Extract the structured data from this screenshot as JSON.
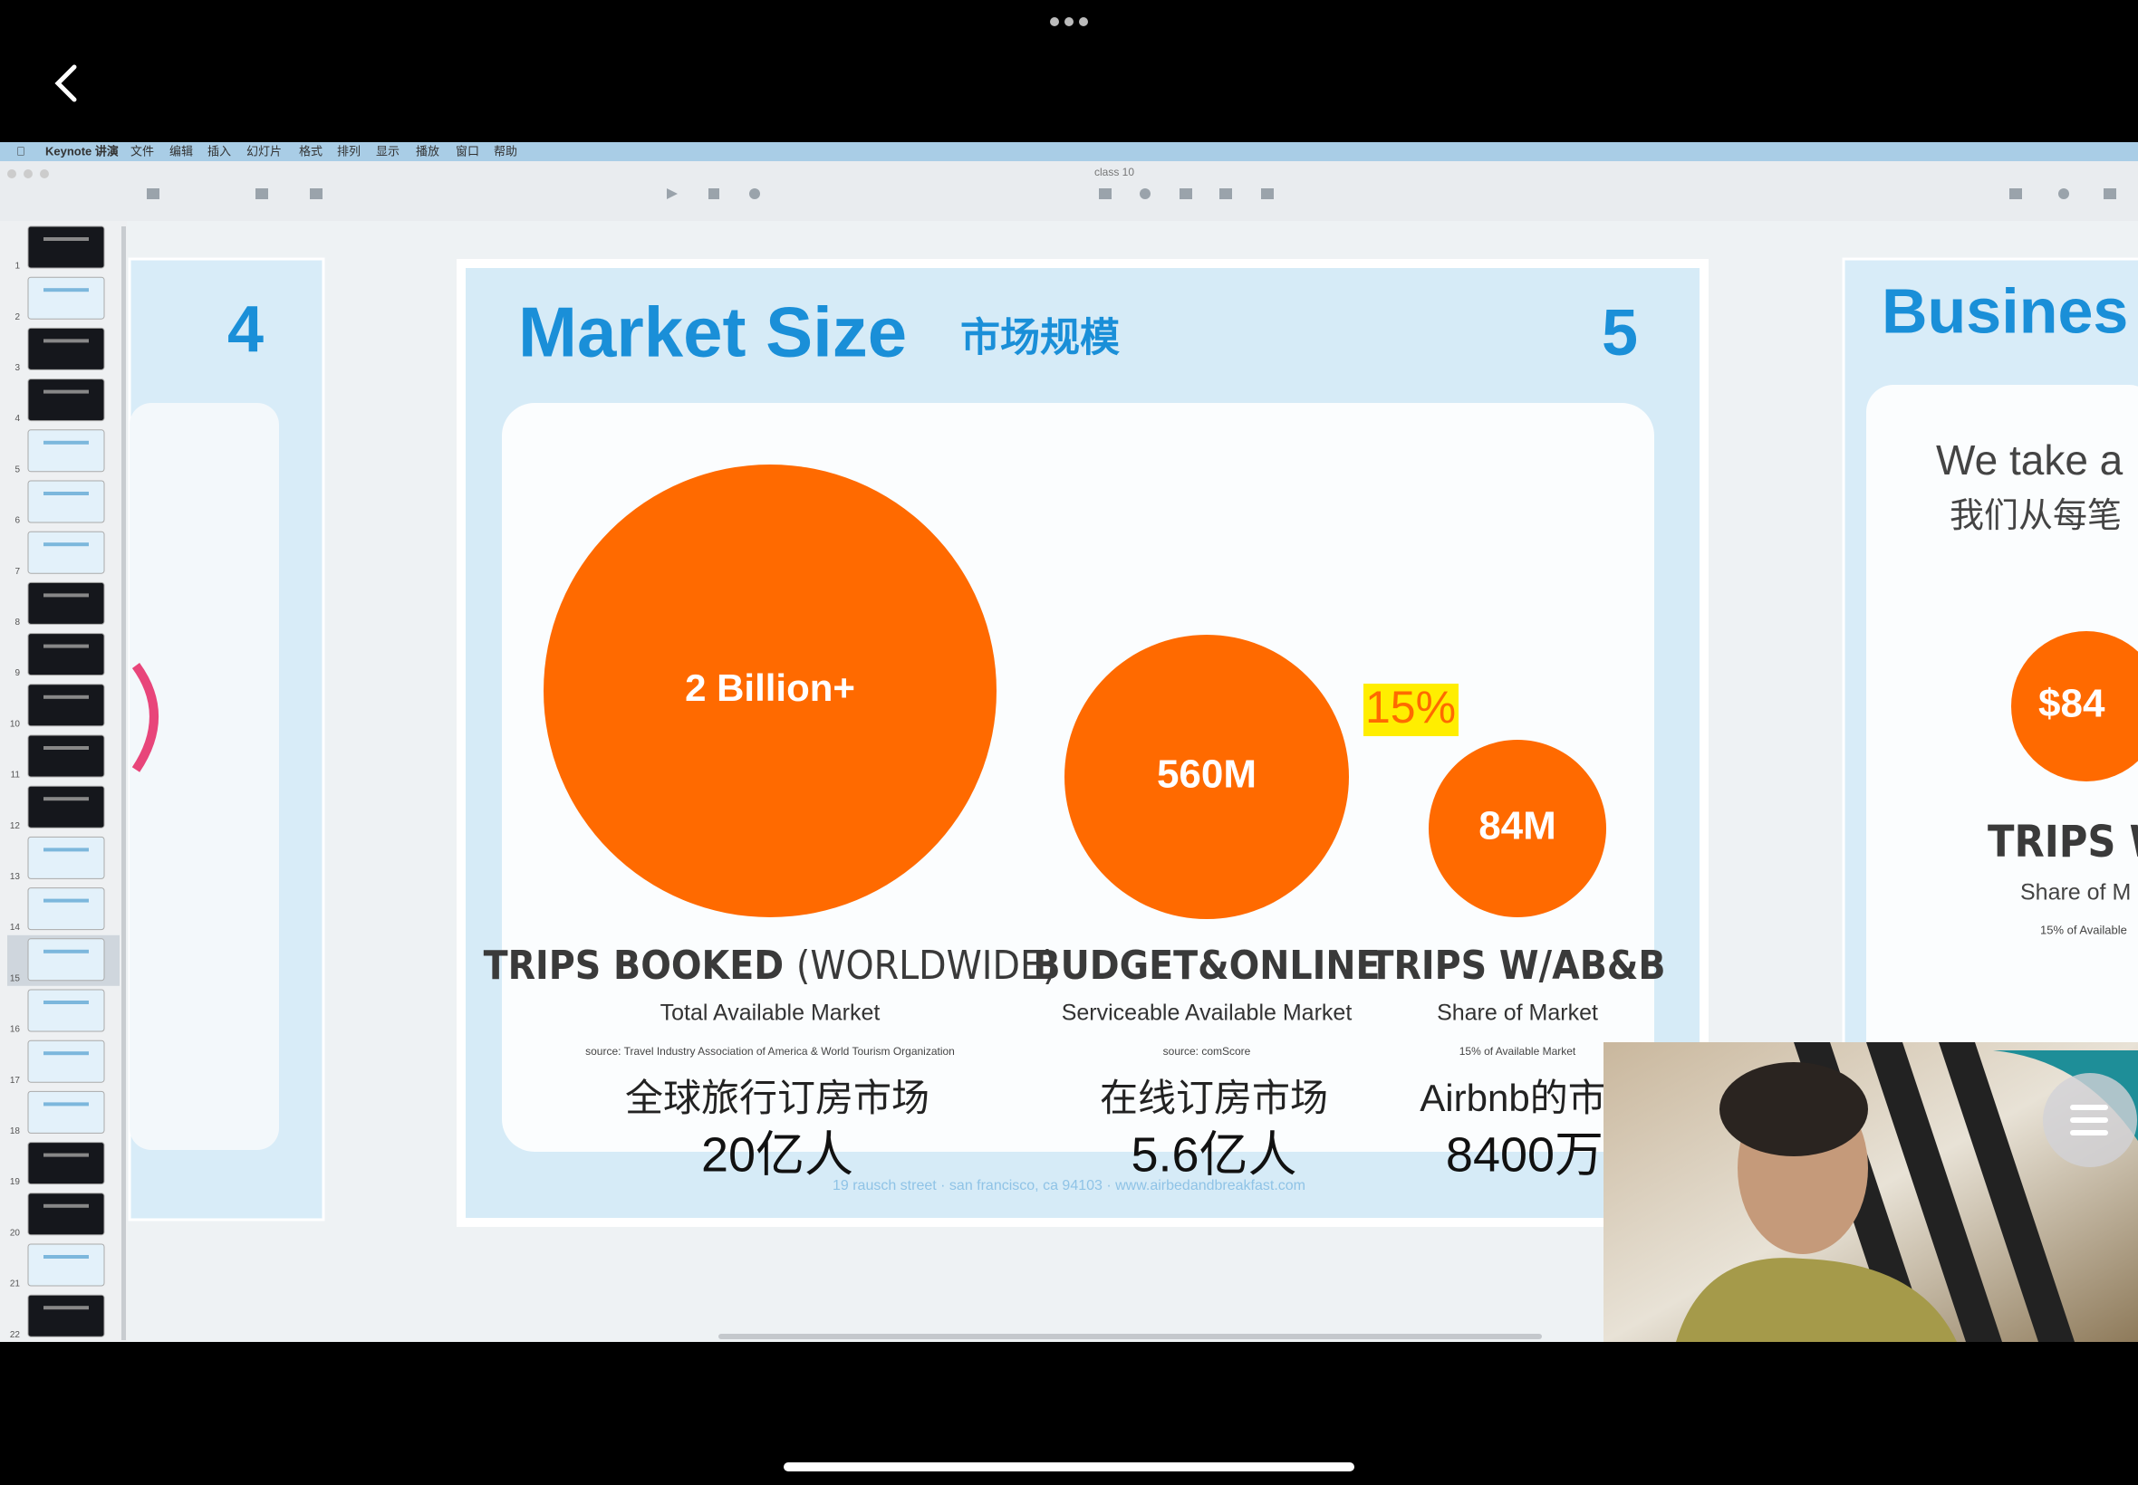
{
  "menu_bar": {
    "app": "Keynote 讲演",
    "items": [
      "文件",
      "编辑",
      "插入",
      "幻灯片",
      "格式",
      "排列",
      "显示",
      "播放",
      "窗口",
      "帮助"
    ]
  },
  "toolbar": {
    "document_title": "class 10"
  },
  "navigator": {
    "slide_numbers": [
      1,
      2,
      3,
      4,
      5,
      6,
      7,
      8,
      9,
      10,
      11,
      12,
      13,
      14,
      15,
      16,
      17,
      18,
      19,
      20,
      21,
      22
    ]
  },
  "previous_slide": {
    "number": "4"
  },
  "slide": {
    "title": "Market Size",
    "title_cn": "市场规模",
    "number": "5",
    "highlight": "15%",
    "circles": [
      {
        "value_text": "2 Billion+",
        "heading": "TRIPS BOOKED",
        "heading_light": "(WORLDWIDE)",
        "subheading": "Total Available Market",
        "source": "source: Travel Industry Association of America & World Tourism Organization",
        "label_cn": "全球旅行订房市场",
        "count_cn": "20亿人"
      },
      {
        "value_text": "560M",
        "heading": "BUDGET&ONLINE",
        "subheading": "Serviceable Available Market",
        "source": "source: comScore",
        "label_cn": "在线订房市场",
        "count_cn": "5.6亿人"
      },
      {
        "value_text": "84M",
        "heading": "TRIPS W/AB&B",
        "subheading": "Share of Market",
        "source": "15% of Available Market",
        "label_cn": "Airbnb的市",
        "count_cn": "8400万"
      }
    ]
  },
  "next_slide": {
    "title": "Busines",
    "line1": "We take a",
    "line2": "我们从每笔",
    "circle_text": "$84",
    "heading": "TRIPS W/",
    "subheading": "Share of M",
    "source": "15% of Available"
  }
}
